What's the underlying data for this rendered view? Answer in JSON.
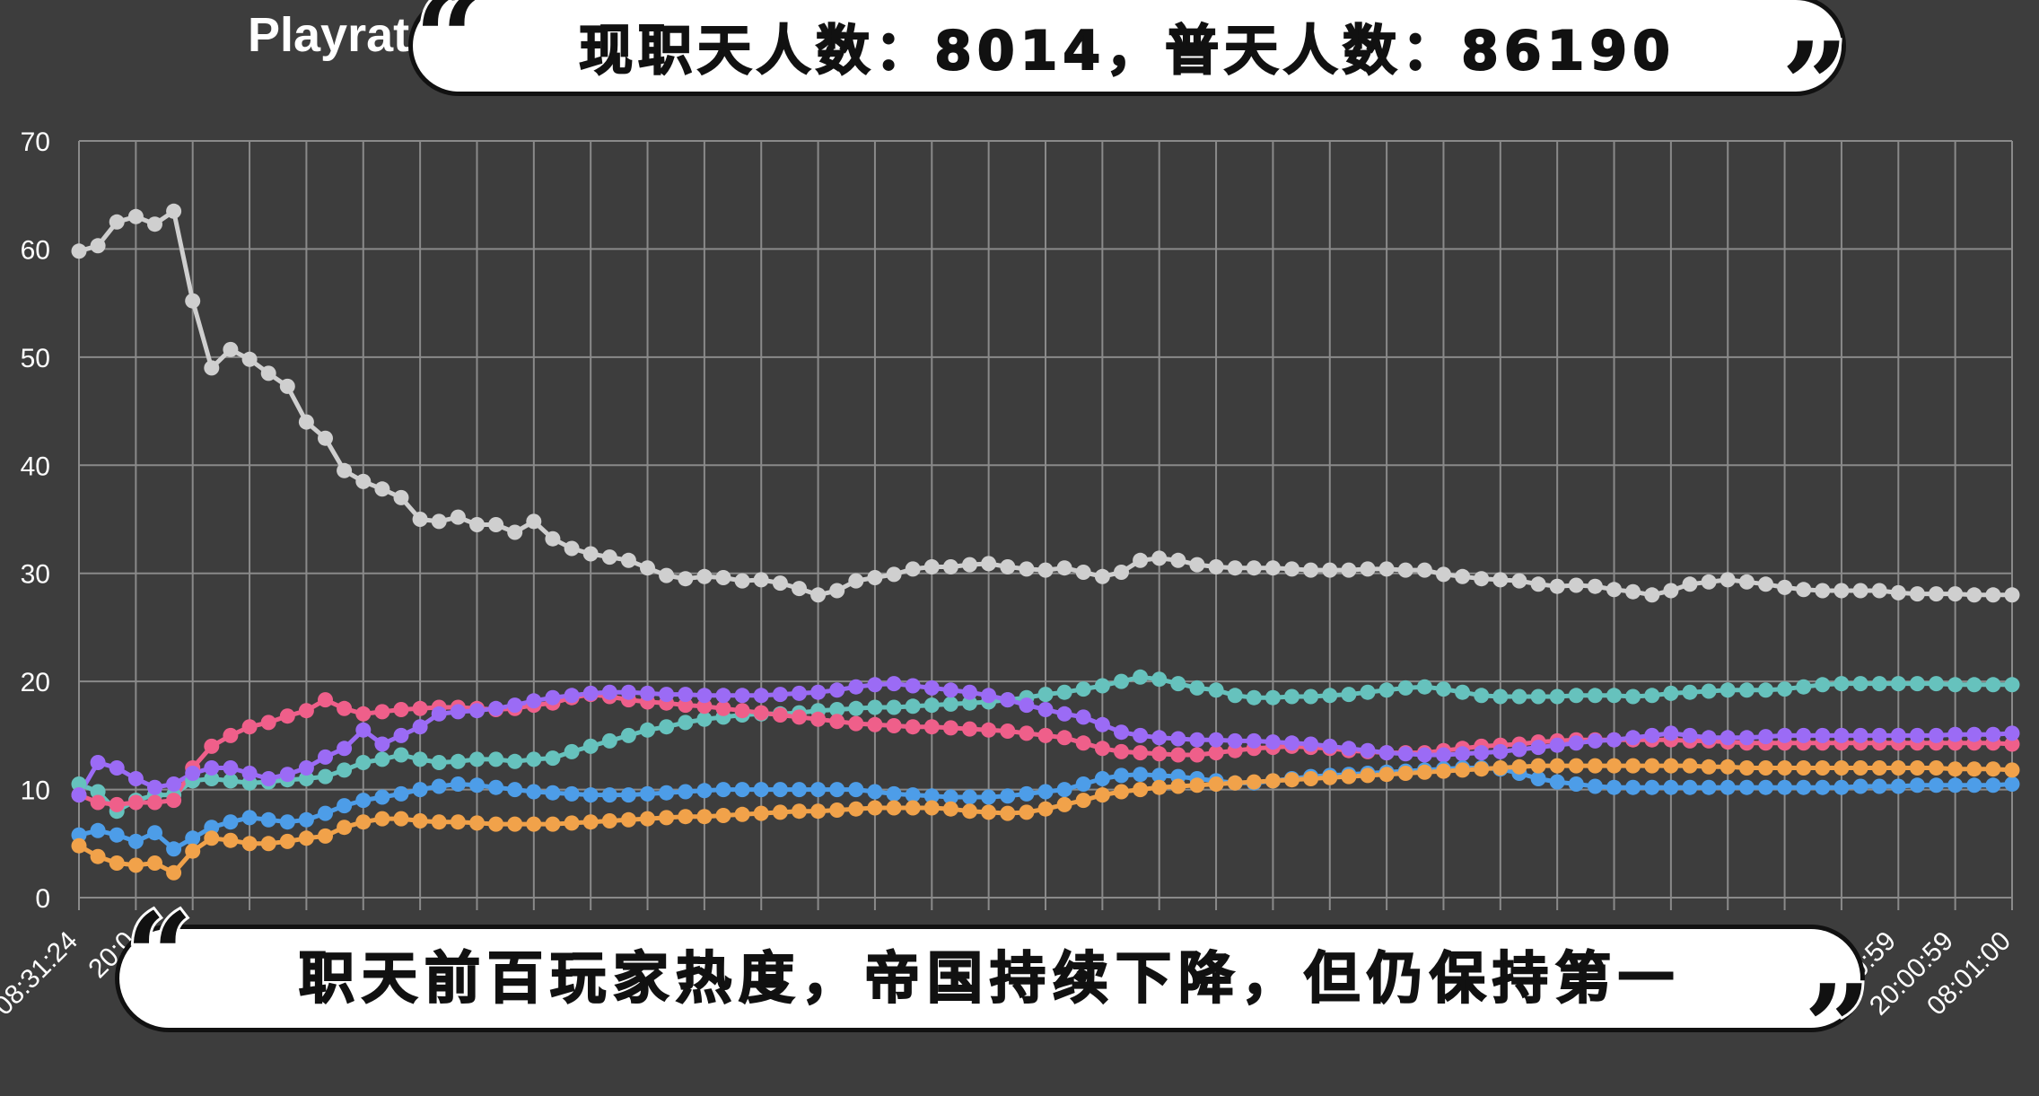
{
  "chart_data": {
    "type": "line",
    "title": "Playrat",
    "ylim": [
      0,
      70
    ],
    "yticks": [
      0,
      10,
      20,
      30,
      40,
      50,
      60,
      70
    ],
    "xtick_labels_visible": [
      "08:31:24",
      "20:0",
      "",
      "0:00:59",
      "20:00:59",
      "08:01:00"
    ],
    "grid": true,
    "n_points": 103,
    "series": [
      {
        "color": "#cfcfcf",
        "values": [
          59.8,
          60.3,
          62.5,
          63.0,
          62.3,
          63.5,
          55.2,
          49.0,
          50.7,
          49.8,
          48.5,
          47.3,
          44.0,
          42.5,
          39.5,
          38.5,
          37.8,
          37.0,
          35.0,
          34.8,
          35.2,
          34.5,
          34.5,
          33.8,
          34.8,
          33.2,
          32.3,
          31.8,
          31.5,
          31.2,
          30.5,
          29.8,
          29.5,
          29.7,
          29.6,
          29.3,
          29.4,
          29.1,
          28.6,
          28.0,
          28.4,
          29.3,
          29.6,
          29.9,
          30.4,
          30.6,
          30.6,
          30.8,
          30.9,
          30.6,
          30.4,
          30.3,
          30.5,
          30.1,
          29.7,
          30.1,
          31.2,
          31.4,
          31.2,
          30.8,
          30.6,
          30.5,
          30.5,
          30.5,
          30.4,
          30.3,
          30.3,
          30.3,
          30.4,
          30.4,
          30.3,
          30.3,
          29.9,
          29.7,
          29.5,
          29.4,
          29.3,
          29.0,
          28.8,
          28.9,
          28.8,
          28.5,
          28.3,
          28.0,
          28.4,
          29.0,
          29.2,
          29.4,
          29.2,
          29.0,
          28.7,
          28.5,
          28.4,
          28.4,
          28.4,
          28.4,
          28.2,
          28.1,
          28.1,
          28.1,
          28.0,
          28.0,
          28.0
        ]
      },
      {
        "color": "#66c2bd",
        "values": [
          10.5,
          9.8,
          8.0,
          9.0,
          9.5,
          9.5,
          10.8,
          11.0,
          10.8,
          10.6,
          10.7,
          10.9,
          11.0,
          11.2,
          11.8,
          12.5,
          12.8,
          13.2,
          12.8,
          12.5,
          12.6,
          12.8,
          12.8,
          12.6,
          12.8,
          12.9,
          13.5,
          14.0,
          14.5,
          15.0,
          15.5,
          15.8,
          16.2,
          16.5,
          16.7,
          16.9,
          17.0,
          17.0,
          17.1,
          17.3,
          17.4,
          17.5,
          17.6,
          17.6,
          17.7,
          17.8,
          17.9,
          18.0,
          18.1,
          18.3,
          18.5,
          18.8,
          19.0,
          19.3,
          19.6,
          20.0,
          20.4,
          20.2,
          19.8,
          19.4,
          19.2,
          18.7,
          18.5,
          18.5,
          18.6,
          18.6,
          18.7,
          18.8,
          19.0,
          19.2,
          19.4,
          19.5,
          19.3,
          19.0,
          18.7,
          18.6,
          18.6,
          18.6,
          18.6,
          18.7,
          18.7,
          18.7,
          18.6,
          18.7,
          18.9,
          19.0,
          19.1,
          19.2,
          19.2,
          19.2,
          19.3,
          19.5,
          19.7,
          19.8,
          19.8,
          19.8,
          19.8,
          19.8,
          19.8,
          19.7,
          19.7,
          19.7,
          19.7
        ]
      },
      {
        "color": "#ef5f8a",
        "values": [
          9.5,
          8.8,
          8.6,
          8.8,
          8.8,
          9.0,
          12.0,
          14.0,
          15.0,
          15.8,
          16.2,
          16.8,
          17.3,
          18.3,
          17.5,
          17.0,
          17.2,
          17.4,
          17.5,
          17.6,
          17.6,
          17.5,
          17.4,
          17.5,
          17.8,
          18.0,
          18.5,
          18.8,
          18.6,
          18.3,
          18.1,
          18.0,
          17.8,
          17.7,
          17.5,
          17.3,
          17.1,
          16.9,
          16.7,
          16.5,
          16.3,
          16.1,
          16.0,
          15.9,
          15.8,
          15.8,
          15.7,
          15.6,
          15.5,
          15.4,
          15.2,
          15.0,
          14.8,
          14.3,
          13.8,
          13.5,
          13.4,
          13.3,
          13.2,
          13.2,
          13.4,
          13.6,
          13.8,
          13.9,
          14.0,
          13.9,
          13.8,
          13.6,
          13.5,
          13.4,
          13.4,
          13.4,
          13.6,
          13.8,
          14.0,
          14.1,
          14.2,
          14.4,
          14.5,
          14.6,
          14.6,
          14.6,
          14.6,
          14.6,
          14.6,
          14.5,
          14.5,
          14.4,
          14.3,
          14.3,
          14.3,
          14.3,
          14.3,
          14.3,
          14.3,
          14.3,
          14.3,
          14.3,
          14.3,
          14.3,
          14.3,
          14.3,
          14.2
        ]
      },
      {
        "color": "#9b6bf5",
        "values": [
          9.5,
          12.5,
          12.0,
          11.0,
          10.2,
          10.5,
          11.5,
          12.0,
          12.0,
          11.5,
          11.0,
          11.4,
          12.0,
          13.0,
          13.8,
          15.5,
          14.2,
          15.0,
          15.8,
          17.0,
          17.2,
          17.3,
          17.5,
          17.8,
          18.2,
          18.5,
          18.7,
          18.9,
          19.0,
          19.0,
          18.9,
          18.8,
          18.8,
          18.7,
          18.7,
          18.7,
          18.7,
          18.8,
          18.9,
          19.0,
          19.2,
          19.5,
          19.7,
          19.8,
          19.6,
          19.4,
          19.2,
          19.0,
          18.7,
          18.3,
          17.8,
          17.4,
          17.0,
          16.7,
          16.0,
          15.3,
          15.0,
          14.8,
          14.7,
          14.6,
          14.6,
          14.5,
          14.5,
          14.4,
          14.3,
          14.2,
          14.0,
          13.8,
          13.6,
          13.4,
          13.3,
          13.2,
          13.2,
          13.3,
          13.4,
          13.5,
          13.7,
          13.9,
          14.1,
          14.3,
          14.5,
          14.6,
          14.8,
          15.0,
          15.2,
          15.0,
          14.8,
          14.8,
          14.8,
          14.9,
          15.0,
          15.0,
          15.0,
          15.0,
          15.0,
          15.0,
          15.0,
          15.0,
          15.0,
          15.1,
          15.1,
          15.1,
          15.2
        ]
      },
      {
        "color": "#4d9de8",
        "values": [
          5.8,
          6.2,
          5.8,
          5.2,
          6.0,
          4.5,
          5.5,
          6.5,
          7.0,
          7.4,
          7.2,
          7.0,
          7.2,
          7.8,
          8.5,
          9.0,
          9.3,
          9.6,
          10.0,
          10.3,
          10.5,
          10.4,
          10.2,
          10.0,
          9.8,
          9.7,
          9.6,
          9.5,
          9.5,
          9.5,
          9.6,
          9.7,
          9.8,
          9.9,
          10.0,
          10.0,
          10.0,
          10.0,
          10.0,
          10.0,
          10.0,
          10.0,
          9.8,
          9.6,
          9.5,
          9.4,
          9.3,
          9.3,
          9.3,
          9.4,
          9.6,
          9.8,
          10.0,
          10.5,
          11.0,
          11.3,
          11.4,
          11.3,
          11.2,
          11.0,
          10.8,
          10.6,
          10.6,
          10.8,
          11.0,
          11.2,
          11.3,
          11.4,
          11.5,
          11.6,
          11.7,
          11.8,
          11.9,
          12.0,
          12.0,
          11.9,
          11.5,
          11.0,
          10.7,
          10.5,
          10.3,
          10.2,
          10.2,
          10.2,
          10.2,
          10.2,
          10.2,
          10.2,
          10.2,
          10.2,
          10.2,
          10.2,
          10.2,
          10.2,
          10.3,
          10.3,
          10.3,
          10.4,
          10.4,
          10.4,
          10.4,
          10.4,
          10.5
        ]
      },
      {
        "color": "#f1a24a",
        "values": [
          4.8,
          3.8,
          3.2,
          3.0,
          3.2,
          2.3,
          4.3,
          5.5,
          5.3,
          5.0,
          5.0,
          5.2,
          5.5,
          5.7,
          6.5,
          7.0,
          7.3,
          7.3,
          7.1,
          7.0,
          7.0,
          6.9,
          6.8,
          6.8,
          6.8,
          6.8,
          6.9,
          7.0,
          7.1,
          7.2,
          7.3,
          7.4,
          7.5,
          7.5,
          7.6,
          7.7,
          7.8,
          7.9,
          8.0,
          8.0,
          8.1,
          8.2,
          8.3,
          8.3,
          8.3,
          8.3,
          8.2,
          8.0,
          7.9,
          7.8,
          7.9,
          8.2,
          8.6,
          9.0,
          9.5,
          9.8,
          10.0,
          10.2,
          10.3,
          10.4,
          10.5,
          10.6,
          10.7,
          10.8,
          10.9,
          11.0,
          11.1,
          11.2,
          11.3,
          11.4,
          11.5,
          11.6,
          11.7,
          11.8,
          11.9,
          12.0,
          12.1,
          12.2,
          12.2,
          12.2,
          12.2,
          12.2,
          12.2,
          12.2,
          12.2,
          12.2,
          12.1,
          12.1,
          12.0,
          12.0,
          12.0,
          12.0,
          12.0,
          12.0,
          12.0,
          12.0,
          12.0,
          12.0,
          12.0,
          11.9,
          11.9,
          11.9,
          11.8
        ]
      }
    ]
  },
  "overlay": {
    "top_caption": "现职天人数：8014，普天人数：86190",
    "bottom_caption": "职天前百玩家热度，帝国持续下降，但仍保持第一",
    "quote_open": "“",
    "quote_close": "”"
  }
}
